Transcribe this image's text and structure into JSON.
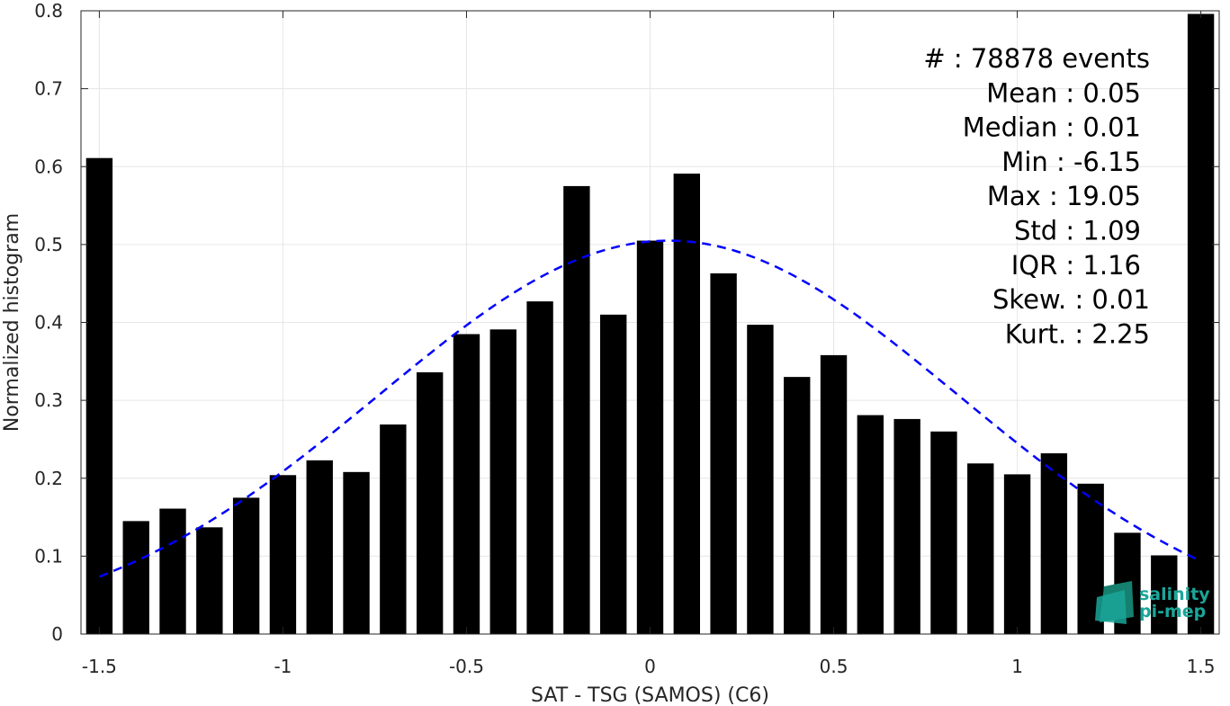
{
  "chart_data": {
    "type": "bar",
    "xlabel": "SAT - TSG (SAMOS) (C6)",
    "ylabel": "Normalized histogram",
    "xlim": [
      -1.55,
      1.55
    ],
    "ylim": [
      0,
      0.8
    ],
    "xticks": [
      -1.5,
      -1,
      -0.5,
      0,
      0.5,
      1,
      1.5
    ],
    "xtick_labels": [
      "-1.5",
      "-1",
      "-0.5",
      "0",
      "0.5",
      "1",
      "1.5"
    ],
    "yticks": [
      0,
      0.1,
      0.2,
      0.3,
      0.4,
      0.5,
      0.6,
      0.7,
      0.8
    ],
    "ytick_labels": [
      "0",
      "0.1",
      "0.2",
      "0.3",
      "0.4",
      "0.5",
      "0.6",
      "0.7",
      "0.8"
    ],
    "grid": true,
    "bin_width": 0.1,
    "bar_color": "#000000",
    "x": [
      -1.5,
      -1.4,
      -1.3,
      -1.2,
      -1.1,
      -1.0,
      -0.9,
      -0.8,
      -0.7,
      -0.6,
      -0.5,
      -0.4,
      -0.3,
      -0.2,
      -0.1,
      0.0,
      0.1,
      0.2,
      0.3,
      0.4,
      0.5,
      0.6,
      0.7,
      0.8,
      0.9,
      1.0,
      1.1,
      1.2,
      1.3,
      1.4,
      1.5
    ],
    "values": [
      0.611,
      0.145,
      0.161,
      0.137,
      0.175,
      0.204,
      0.223,
      0.208,
      0.269,
      0.336,
      0.385,
      0.391,
      0.427,
      0.575,
      0.41,
      0.505,
      0.591,
      0.463,
      0.397,
      0.33,
      0.358,
      0.281,
      0.276,
      0.26,
      0.219,
      0.205,
      0.232,
      0.193,
      0.13,
      0.101,
      0.796
    ],
    "fit_curve": {
      "type": "gaussian",
      "mean": 0.05,
      "std": 0.79,
      "peak": 0.505,
      "x_range": [
        -1.5,
        1.5
      ],
      "color": "#0000ff",
      "style": "dashed"
    },
    "stats_lines": [
      "#  : 78878 events",
      "Mean : 0.05",
      "Median : 0.01",
      "Min : -6.15",
      "Max : 19.05",
      "Std : 1.09",
      "IQR : 1.16",
      "Skew. : 0.01",
      "Kurt. : 2.25"
    ]
  },
  "logo": {
    "line1": "salinity",
    "line2": "pi-mep",
    "color": "#1aa699"
  }
}
